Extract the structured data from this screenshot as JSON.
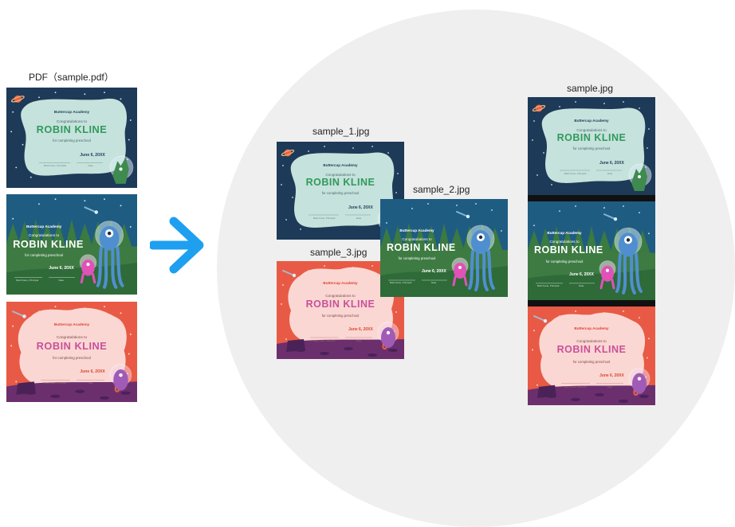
{
  "labels": {
    "pdf": "PDF（sample.pdf）",
    "out1": "sample_1.jpg",
    "out2": "sample_2.jpg",
    "out3": "sample_3.jpg",
    "merged": "sample.jpg"
  },
  "cert_text": {
    "school": "Buttercup Academy",
    "congrats": "Congratulations to",
    "name": "ROBIN KLINE",
    "reason": "for completing preschool",
    "date": "June 6, 20XX",
    "signer": "Barb Kane, Principal",
    "date_label": "Date"
  },
  "colors": {
    "navy": "#1d3a58",
    "mint": "#c6e2dc",
    "green_text": "#2f9a5c",
    "forest_sky": "#1f5c82",
    "forest_green": "#3e7b43",
    "coral": "#e85a45",
    "blush": "#fbd7d3",
    "pink_text": "#c7519a",
    "arrow": "#1e9ff0",
    "circle_bg": "#efefef"
  },
  "icons": [
    "arrow-right-icon",
    "planet-icon",
    "alien-icon",
    "comet-icon"
  ]
}
